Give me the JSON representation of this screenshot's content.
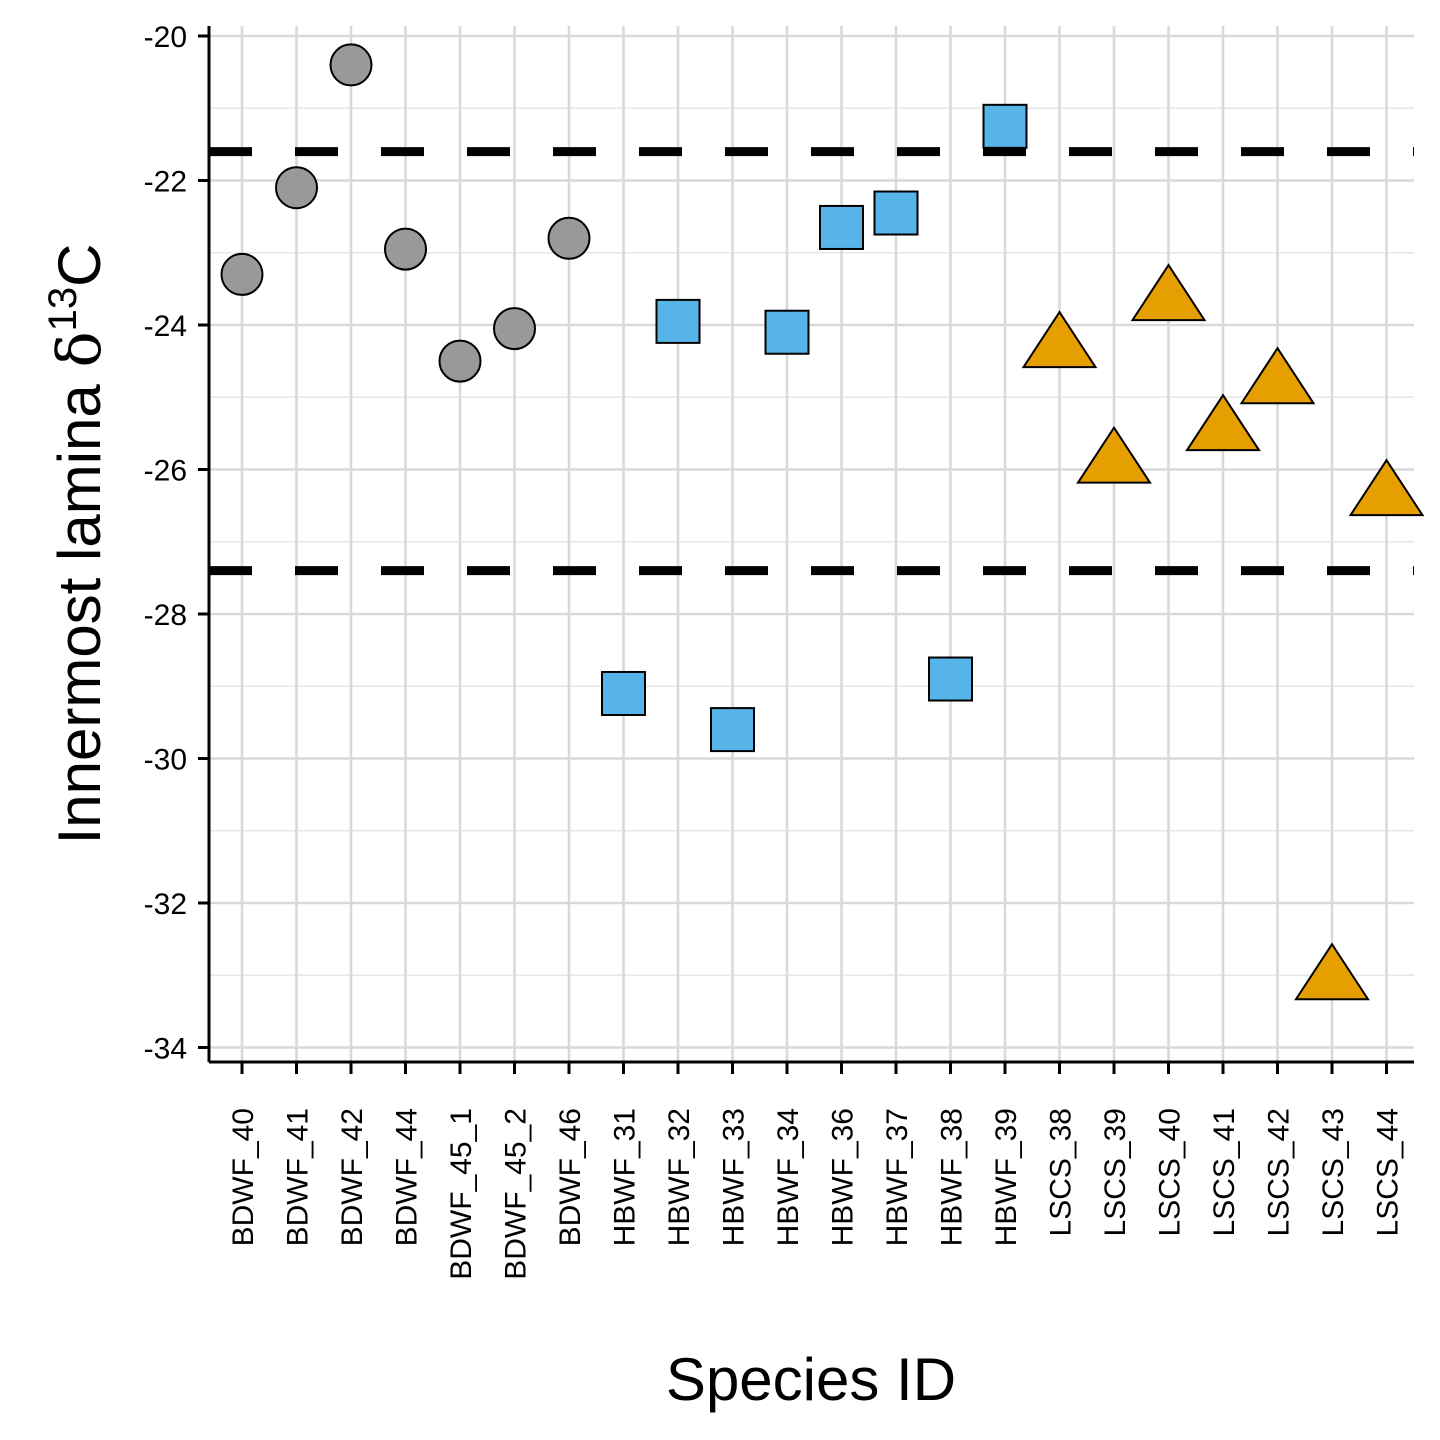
{
  "chart_data": {
    "type": "scatter",
    "xlabel": "Species ID",
    "ylabel": {
      "base": "Innermost lamina ",
      "delta": "δ",
      "sup": "13",
      "tail": "C"
    },
    "ylim": [
      -34.2,
      -19.8
    ],
    "yticks": [
      -20,
      -22,
      -24,
      -26,
      -28,
      -30,
      -32,
      -34
    ],
    "ytick_labels": [
      "-20",
      "-22",
      "-24",
      "-26",
      "-28",
      "-30",
      "-32",
      "-34"
    ],
    "reference_lines": [
      -21.6,
      -27.4
    ],
    "grid": true,
    "categories": [
      "BDWF_40",
      "BDWF_41",
      "BDWF_42",
      "BDWF_44",
      "BDWF_45_1",
      "BDWF_45_2",
      "BDWF_46",
      "HBWF_31",
      "HBWF_32",
      "HBWF_33",
      "HBWF_34",
      "HBWF_36",
      "HBWF_37",
      "HBWF_38",
      "HBWF_39",
      "LSCS_38",
      "LSCS_39",
      "LSCS_40",
      "LSCS_41",
      "LSCS_42",
      "LSCS_43",
      "LSCS_44"
    ],
    "series": [
      {
        "group": "BDWF",
        "shape": "circle",
        "color": "#999999",
        "points": [
          {
            "x": "BDWF_40",
            "y": -23.3
          },
          {
            "x": "BDWF_41",
            "y": -22.1
          },
          {
            "x": "BDWF_42",
            "y": -20.4
          },
          {
            "x": "BDWF_44",
            "y": -22.95
          },
          {
            "x": "BDWF_45_1",
            "y": -24.5
          },
          {
            "x": "BDWF_45_2",
            "y": -24.05
          },
          {
            "x": "BDWF_46",
            "y": -22.8
          }
        ]
      },
      {
        "group": "HBWF",
        "shape": "square",
        "color": "#56b4e9",
        "points": [
          {
            "x": "HBWF_31",
            "y": -29.1
          },
          {
            "x": "HBWF_32",
            "y": -23.95
          },
          {
            "x": "HBWF_33",
            "y": -29.6
          },
          {
            "x": "HBWF_34",
            "y": -24.1
          },
          {
            "x": "HBWF_36",
            "y": -22.65
          },
          {
            "x": "HBWF_37",
            "y": -22.45
          },
          {
            "x": "HBWF_38",
            "y": -28.9
          },
          {
            "x": "HBWF_39",
            "y": -21.25
          }
        ]
      },
      {
        "group": "LSCS",
        "shape": "triangle",
        "color": "#e69f00",
        "points": [
          {
            "x": "LSCS_38",
            "y": -24.25
          },
          {
            "x": "LSCS_39",
            "y": -25.85
          },
          {
            "x": "LSCS_40",
            "y": -23.6
          },
          {
            "x": "LSCS_41",
            "y": -25.4
          },
          {
            "x": "LSCS_42",
            "y": -24.75
          },
          {
            "x": "LSCS_43",
            "y": -33.0
          },
          {
            "x": "LSCS_44",
            "y": -26.3
          }
        ]
      }
    ]
  }
}
